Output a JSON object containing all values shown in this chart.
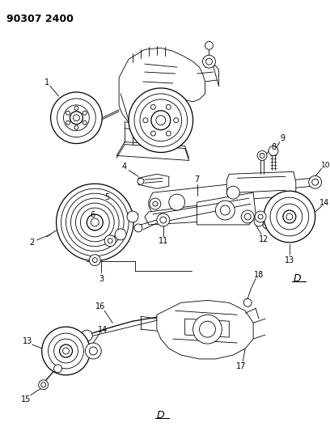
{
  "title": "90307 2400",
  "bg_color": "#ffffff",
  "line_color": "#000000",
  "fig_width": 4.08,
  "fig_height": 5.33,
  "dpi": 100,
  "page_label": "D",
  "lw_thin": 0.6,
  "lw_med": 0.9,
  "lw_thick": 1.2
}
